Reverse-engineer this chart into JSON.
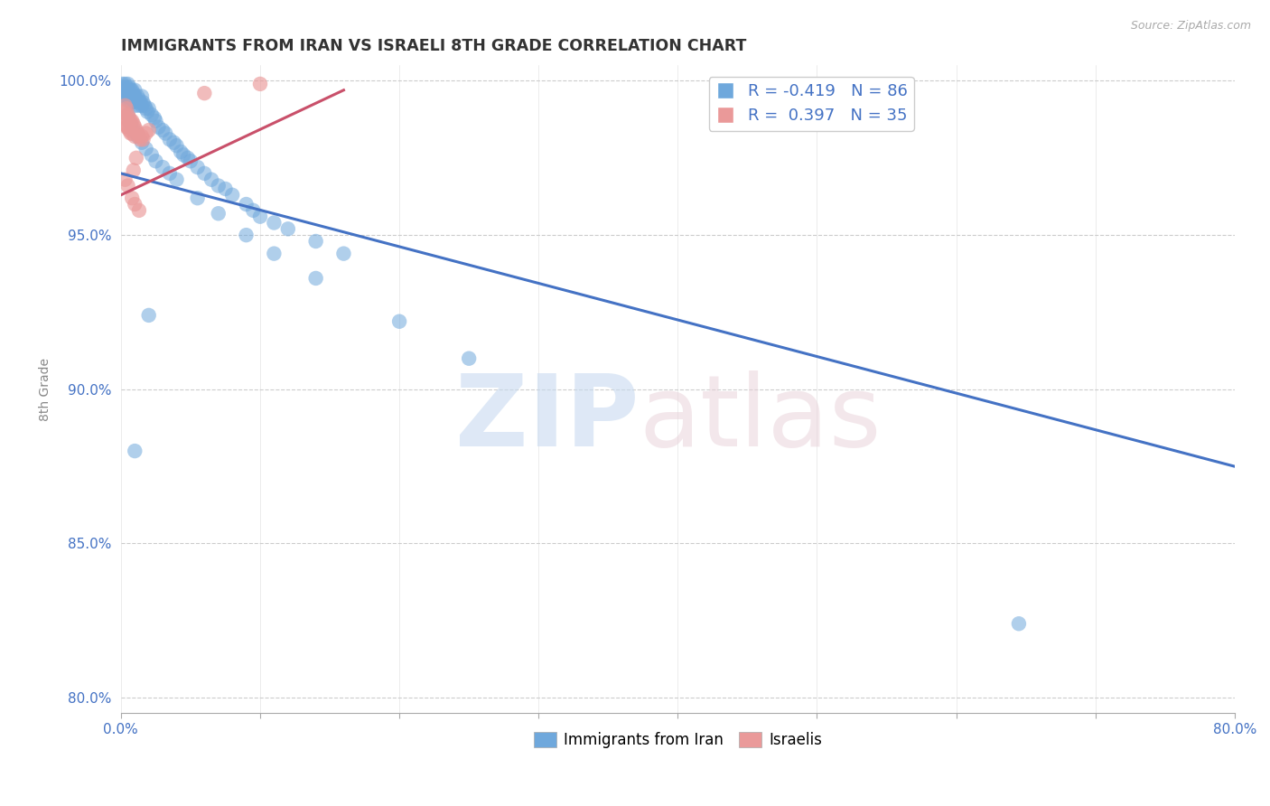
{
  "title": "IMMIGRANTS FROM IRAN VS ISRAELI 8TH GRADE CORRELATION CHART",
  "source_text": "Source: ZipAtlas.com",
  "ylabel": "8th Grade",
  "xlim": [
    0.0,
    0.8
  ],
  "ylim": [
    0.795,
    1.005
  ],
  "xticks": [
    0.0,
    0.1,
    0.2,
    0.3,
    0.4,
    0.5,
    0.6,
    0.7,
    0.8
  ],
  "xticklabels": [
    "0.0%",
    "",
    "",
    "",
    "",
    "",
    "",
    "",
    "80.0%"
  ],
  "yticks": [
    0.8,
    0.85,
    0.9,
    0.95,
    1.0
  ],
  "yticklabels": [
    "80.0%",
    "85.0%",
    "90.0%",
    "95.0%",
    "100.0%"
  ],
  "blue_color": "#6fa8dc",
  "pink_color": "#ea9999",
  "trend_blue": "#4472c4",
  "trend_pink": "#c9506a",
  "axis_label_color": "#4472c4",
  "R_blue": -0.419,
  "N_blue": 86,
  "R_pink": 0.397,
  "N_pink": 35,
  "legend_label_blue": "Immigrants from Iran",
  "legend_label_pink": "Israelis",
  "blue_trend_x0": 0.0,
  "blue_trend_y0": 0.97,
  "blue_trend_x1": 0.8,
  "blue_trend_y1": 0.875,
  "pink_trend_x0": 0.0,
  "pink_trend_y0": 0.963,
  "pink_trend_x1": 0.16,
  "pink_trend_y1": 0.997,
  "blue_scatter_x": [
    0.001,
    0.002,
    0.002,
    0.003,
    0.003,
    0.003,
    0.004,
    0.004,
    0.004,
    0.005,
    0.005,
    0.005,
    0.006,
    0.006,
    0.006,
    0.007,
    0.007,
    0.007,
    0.008,
    0.008,
    0.008,
    0.009,
    0.009,
    0.01,
    0.01,
    0.01,
    0.011,
    0.012,
    0.012,
    0.013,
    0.013,
    0.014,
    0.015,
    0.015,
    0.016,
    0.017,
    0.018,
    0.019,
    0.02,
    0.022,
    0.024,
    0.025,
    0.027,
    0.03,
    0.032,
    0.035,
    0.038,
    0.04,
    0.043,
    0.045,
    0.048,
    0.05,
    0.055,
    0.06,
    0.065,
    0.07,
    0.075,
    0.08,
    0.09,
    0.095,
    0.1,
    0.11,
    0.12,
    0.14,
    0.16,
    0.005,
    0.007,
    0.009,
    0.012,
    0.015,
    0.018,
    0.022,
    0.025,
    0.03,
    0.035,
    0.04,
    0.055,
    0.07,
    0.09,
    0.11,
    0.14,
    0.2,
    0.25,
    0.02,
    0.01,
    0.645
  ],
  "blue_scatter_y": [
    0.999,
    0.998,
    0.997,
    0.999,
    0.997,
    0.995,
    0.998,
    0.996,
    0.994,
    0.999,
    0.997,
    0.995,
    0.998,
    0.996,
    0.993,
    0.997,
    0.995,
    0.993,
    0.997,
    0.995,
    0.993,
    0.996,
    0.994,
    0.997,
    0.995,
    0.992,
    0.994,
    0.995,
    0.993,
    0.994,
    0.992,
    0.993,
    0.995,
    0.992,
    0.993,
    0.992,
    0.991,
    0.99,
    0.991,
    0.989,
    0.988,
    0.987,
    0.985,
    0.984,
    0.983,
    0.981,
    0.98,
    0.979,
    0.977,
    0.976,
    0.975,
    0.974,
    0.972,
    0.97,
    0.968,
    0.966,
    0.965,
    0.963,
    0.96,
    0.958,
    0.956,
    0.954,
    0.952,
    0.948,
    0.944,
    0.989,
    0.986,
    0.984,
    0.982,
    0.98,
    0.978,
    0.976,
    0.974,
    0.972,
    0.97,
    0.968,
    0.962,
    0.957,
    0.95,
    0.944,
    0.936,
    0.922,
    0.91,
    0.924,
    0.88,
    0.824
  ],
  "pink_scatter_x": [
    0.001,
    0.002,
    0.002,
    0.003,
    0.003,
    0.004,
    0.004,
    0.005,
    0.005,
    0.006,
    0.006,
    0.007,
    0.007,
    0.008,
    0.008,
    0.009,
    0.01,
    0.01,
    0.011,
    0.012,
    0.013,
    0.014,
    0.015,
    0.016,
    0.018,
    0.02,
    0.003,
    0.005,
    0.008,
    0.01,
    0.013,
    0.06,
    0.1,
    0.011,
    0.009
  ],
  "pink_scatter_y": [
    0.988,
    0.99,
    0.986,
    0.992,
    0.988,
    0.985,
    0.991,
    0.989,
    0.985,
    0.988,
    0.984,
    0.987,
    0.983,
    0.987,
    0.983,
    0.986,
    0.985,
    0.982,
    0.984,
    0.983,
    0.982,
    0.981,
    0.982,
    0.981,
    0.983,
    0.984,
    0.968,
    0.966,
    0.962,
    0.96,
    0.958,
    0.996,
    0.999,
    0.975,
    0.971
  ]
}
